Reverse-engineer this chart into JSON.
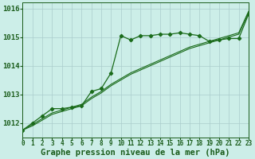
{
  "background_color": "#cceee8",
  "grid_color": "#aacccc",
  "line_color": "#1a6b1a",
  "xlabel": "Graphe pression niveau de la mer (hPa)",
  "xlabel_fontsize": 7.5,
  "ylabel_fontsize": 6.5,
  "tick_fontsize": 5.5,
  "xlim": [
    0,
    23
  ],
  "ylim": [
    1011.5,
    1016.2
  ],
  "yticks": [
    1012,
    1013,
    1014,
    1015,
    1016
  ],
  "xticks": [
    0,
    1,
    2,
    3,
    4,
    5,
    6,
    7,
    8,
    9,
    10,
    11,
    12,
    13,
    14,
    15,
    16,
    17,
    18,
    19,
    20,
    21,
    22,
    23
  ],
  "series1_x": [
    0,
    1,
    2,
    3,
    4,
    5,
    6,
    7,
    8,
    9,
    10,
    11,
    12,
    13,
    14,
    15,
    16,
    17,
    18,
    19,
    20,
    21,
    22,
    23
  ],
  "series1_y": [
    1011.75,
    1012.0,
    1012.25,
    1012.5,
    1012.5,
    1012.55,
    1012.6,
    1013.1,
    1013.2,
    1013.75,
    1015.05,
    1014.9,
    1015.05,
    1015.05,
    1015.1,
    1015.1,
    1015.15,
    1015.1,
    1015.05,
    1014.85,
    1014.9,
    1014.95,
    1014.95,
    1015.8
  ],
  "series2_x": [
    0,
    1,
    2,
    3,
    4,
    5,
    6,
    7,
    8,
    9,
    10,
    11,
    12,
    13,
    14,
    15,
    16,
    17,
    18,
    19,
    20,
    21,
    22,
    23
  ],
  "series2_y": [
    1011.75,
    1011.9,
    1012.1,
    1012.3,
    1012.4,
    1012.5,
    1012.6,
    1012.85,
    1013.05,
    1013.3,
    1013.5,
    1013.7,
    1013.85,
    1014.0,
    1014.15,
    1014.3,
    1014.45,
    1014.6,
    1014.7,
    1014.8,
    1014.9,
    1015.0,
    1015.1,
    1015.85
  ],
  "series3_x": [
    0,
    1,
    2,
    3,
    4,
    5,
    6,
    7,
    8,
    9,
    10,
    11,
    12,
    13,
    14,
    15,
    16,
    17,
    18,
    19,
    20,
    21,
    22,
    23
  ],
  "series3_y": [
    1011.75,
    1011.95,
    1012.15,
    1012.35,
    1012.45,
    1012.55,
    1012.65,
    1012.9,
    1013.1,
    1013.35,
    1013.55,
    1013.75,
    1013.9,
    1014.05,
    1014.2,
    1014.35,
    1014.5,
    1014.65,
    1014.75,
    1014.85,
    1014.95,
    1015.05,
    1015.15,
    1015.9
  ]
}
